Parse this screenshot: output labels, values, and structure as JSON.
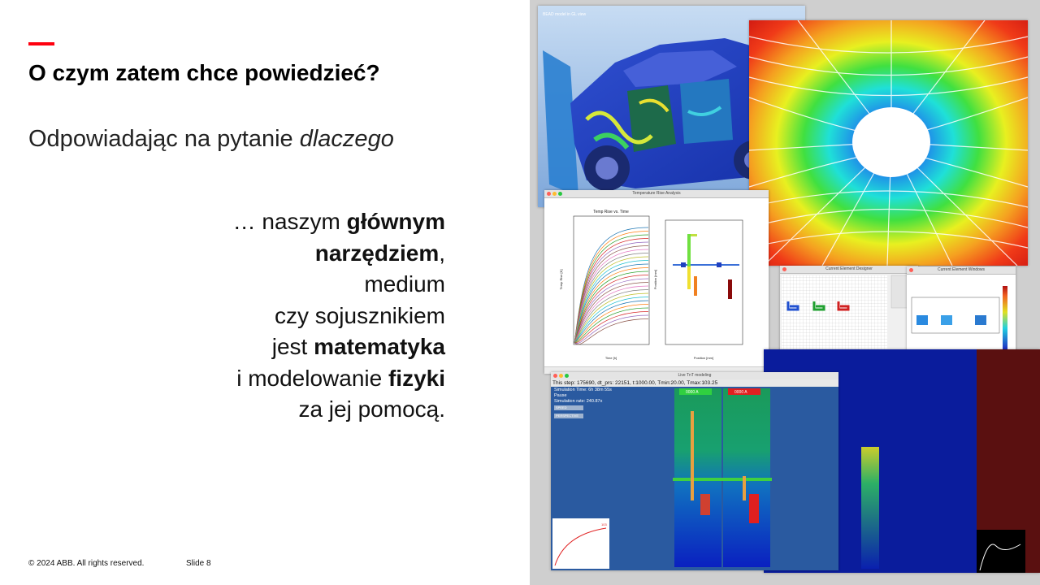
{
  "slide": {
    "title": "O czym zatem chce powiedzieć?",
    "subtitle_plain": "Odpowiadając na pytanie ",
    "subtitle_italic": "dlaczego",
    "body": [
      [
        {
          "t": "… naszym ",
          "b": false
        },
        {
          "t": "głównym",
          "b": true
        }
      ],
      [
        {
          "t": "narzędziem",
          "b": true
        },
        {
          "t": ",",
          "b": false
        }
      ],
      [
        {
          "t": "medium",
          "b": false
        }
      ],
      [
        {
          "t": "czy sojusznikiem",
          "b": false
        }
      ],
      [
        {
          "t": "jest ",
          "b": false
        },
        {
          "t": "matematyka",
          "b": true
        }
      ],
      [
        {
          "t": "i modelowanie ",
          "b": false
        },
        {
          "t": "fizyki",
          "b": true
        }
      ],
      [
        {
          "t": "za jej pomocą.",
          "b": false
        }
      ]
    ]
  },
  "footer": {
    "copyright": "© 2024 ABB. All rights reserved.",
    "slide_number": "Slide 8"
  },
  "collage": {
    "car_panel_label": "BEAD model in GL view",
    "chart_window_title": "Temperature Rise Analysis",
    "chart_title": "Temp Rise vs. Time",
    "chart_xlabel": "Time [h]",
    "chart_ylabel": "Temp Rise [K]",
    "pos_xlabel": "Position [mm]",
    "pos_ylabel": "Position [mm]",
    "grid_window_title": "Current Element Designer",
    "heat_window_title": "Current Element Windows",
    "sim_window_title": "Live TnT modeling",
    "sim_status_line": "This step: 175690, dt_prs: 22151, t:1000.00, Tmin:20.00, Tmax:103.25",
    "sim_info": [
      "Simulation Time: 6h 38m 55s",
      "Pause",
      "Simulation rate: 240.87x"
    ],
    "sim_buttons": [
      "SPEED",
      "PERSPECTIVE"
    ],
    "sim_col_a": "0000 A",
    "sim_col_b": "0000 A",
    "mini_plot_value": "103"
  },
  "colors": {
    "accent": "#ff000f",
    "text": "#111111",
    "collage_bg": "#cfcfcf",
    "sim_bg": "#2a5aa0"
  }
}
